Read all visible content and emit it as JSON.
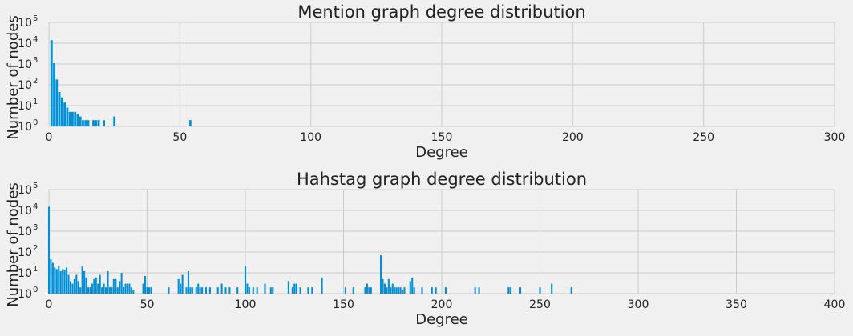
{
  "figure": {
    "background": "#f0f0f0",
    "bar_color": "#008fd5",
    "grid_color": "#cbcbcb"
  },
  "chart_data": [
    {
      "type": "bar",
      "title": "Mention graph degree distribution",
      "xlabel": "Degree",
      "ylabel": "Number of nodes",
      "yscale": "log",
      "xlim": [
        0,
        300
      ],
      "ylim": [
        1,
        100000
      ],
      "xticks": [
        "0",
        "50",
        "100",
        "150",
        "200",
        "250",
        "300"
      ],
      "yticks": [
        {
          "base": "10",
          "exp": "0"
        },
        {
          "base": "10",
          "exp": "1"
        },
        {
          "base": "10",
          "exp": "2"
        },
        {
          "base": "10",
          "exp": "3"
        },
        {
          "base": "10",
          "exp": "4"
        },
        {
          "base": "10",
          "exp": "5"
        }
      ],
      "grid": true,
      "x": [
        1,
        2,
        3,
        4,
        5,
        6,
        7,
        8,
        9,
        10,
        11,
        12,
        13,
        14,
        15,
        17,
        18,
        19,
        21,
        25,
        54
      ],
      "values": [
        14000,
        1100,
        180,
        45,
        25,
        14,
        8,
        5,
        5,
        5,
        4,
        3,
        2,
        2,
        2,
        2,
        2,
        2,
        2,
        3,
        2
      ]
    },
    {
      "type": "bar",
      "title": "Hahstag graph degree distribution",
      "xlabel": "Degree",
      "ylabel": "Number of nodes",
      "yscale": "log",
      "xlim": [
        0,
        400
      ],
      "ylim": [
        1,
        100000
      ],
      "xticks": [
        "0",
        "50",
        "100",
        "150",
        "200",
        "250",
        "300",
        "350",
        "400"
      ],
      "yticks": [
        {
          "base": "10",
          "exp": "0"
        },
        {
          "base": "10",
          "exp": "1"
        },
        {
          "base": "10",
          "exp": "2"
        },
        {
          "base": "10",
          "exp": "3"
        },
        {
          "base": "10",
          "exp": "4"
        },
        {
          "base": "10",
          "exp": "5"
        }
      ],
      "grid": true,
      "x": [
        0,
        1,
        2,
        3,
        4,
        5,
        6,
        7,
        8,
        9,
        10,
        11,
        12,
        13,
        14,
        15,
        16,
        17,
        18,
        19,
        20,
        21,
        22,
        23,
        24,
        25,
        26,
        27,
        28,
        29,
        30,
        31,
        32,
        33,
        34,
        35,
        36,
        37,
        38,
        39,
        40,
        41,
        42,
        43,
        48,
        49,
        50,
        51,
        52,
        61,
        66,
        67,
        68,
        70,
        71,
        72,
        73,
        75,
        76,
        77,
        78,
        80,
        82,
        86,
        88,
        90,
        92,
        96,
        100,
        101,
        102,
        104,
        106,
        110,
        113,
        114,
        122,
        124,
        125,
        126,
        128,
        132,
        134,
        139,
        151,
        155,
        161,
        162,
        163,
        164,
        169,
        170,
        171,
        172,
        173,
        174,
        175,
        176,
        177,
        178,
        179,
        180,
        181,
        184,
        185,
        186,
        190,
        195,
        197,
        202,
        217,
        219,
        234,
        235,
        240,
        250,
        256,
        266
      ],
      "values": [
        15000,
        45,
        30,
        18,
        15,
        20,
        12,
        15,
        14,
        18,
        8,
        4,
        3,
        5,
        8,
        4,
        2,
        20,
        12,
        6,
        2,
        2,
        3,
        5,
        6,
        3,
        8,
        2,
        3,
        2,
        12,
        2,
        2,
        5,
        5,
        2,
        4,
        10,
        2,
        3,
        3,
        3,
        2,
        1.5,
        3,
        7,
        2,
        2,
        2,
        2,
        5,
        3,
        8,
        2,
        12,
        2,
        2,
        2,
        3,
        2,
        2,
        2,
        2,
        2,
        3,
        2,
        2,
        2,
        22,
        3,
        2,
        2,
        2,
        3,
        2,
        2,
        4,
        2,
        3,
        3,
        2,
        2,
        2,
        6,
        2,
        2,
        2,
        3,
        2,
        2,
        70,
        5,
        3,
        2,
        5,
        2,
        3,
        2,
        2,
        2,
        2,
        1.5,
        2,
        4,
        6,
        2,
        2,
        2,
        2,
        2,
        2,
        2,
        2,
        2,
        2,
        2,
        3,
        2
      ]
    }
  ]
}
